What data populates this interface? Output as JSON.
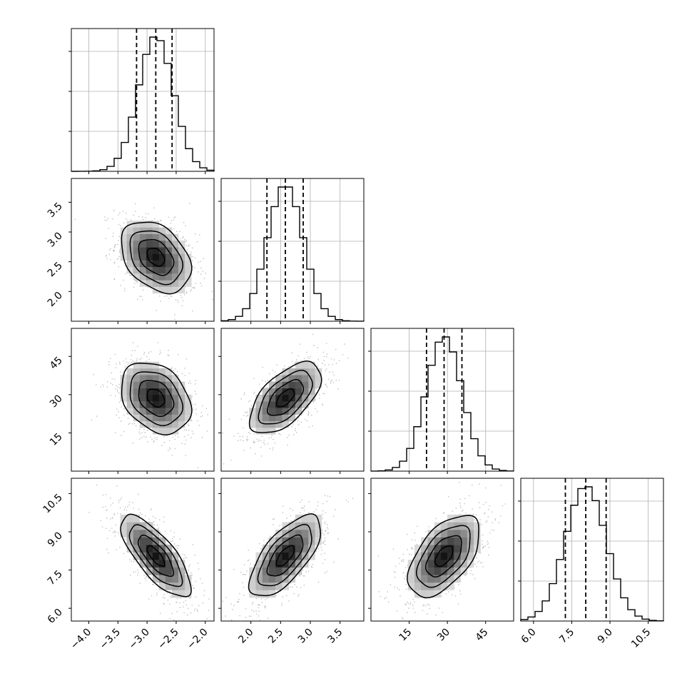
{
  "figure": {
    "background": "#ffffff",
    "line_color": "#000000",
    "grid_color": "#b0b0b0",
    "scatter_color": "#8c8c8c"
  },
  "chart_data": {
    "type": "corner",
    "parameters": [
      {
        "index": 0,
        "range": [
          -4.3,
          -1.85
        ],
        "ticks": [
          -4.0,
          -3.5,
          -3.0,
          -2.5,
          -2.0
        ],
        "tick_labels": [
          "−4.0",
          "−3.5",
          "−3.0",
          "−2.5",
          "−2.0"
        ],
        "quantiles": [
          -3.18,
          -2.85,
          -2.57
        ],
        "mean": -2.85,
        "sd": 0.3
      },
      {
        "index": 1,
        "range": [
          1.5,
          3.9
        ],
        "ticks": [
          2.0,
          2.5,
          3.0,
          3.5
        ],
        "tick_labels": [
          "2.0",
          "2.5",
          "3.0",
          "3.5"
        ],
        "quantiles": [
          2.27,
          2.58,
          2.88
        ],
        "mean": 2.58,
        "sd": 0.3
      },
      {
        "index": 2,
        "range": [
          0,
          56
        ],
        "ticks": [
          15,
          30,
          45
        ],
        "tick_labels": [
          "15",
          "30",
          "45"
        ],
        "quantiles": [
          21.8,
          28.7,
          35.7
        ],
        "mean": 28.7,
        "sd": 7
      },
      {
        "index": 3,
        "range": [
          5.5,
          11.1
        ],
        "ticks": [
          6.0,
          7.5,
          9.0,
          10.5
        ],
        "tick_labels": [
          "6.0",
          "7.5",
          "9.0",
          "10.5"
        ],
        "quantiles": [
          7.25,
          8.05,
          8.85
        ],
        "mean": 8.05,
        "sd": 0.8
      }
    ],
    "pairs": [
      {
        "x": 0,
        "y": 1,
        "correlation": -0.35
      },
      {
        "x": 0,
        "y": 2,
        "correlation": -0.3
      },
      {
        "x": 1,
        "y": 2,
        "correlation": 0.6
      },
      {
        "x": 0,
        "y": 3,
        "correlation": -0.75
      },
      {
        "x": 1,
        "y": 3,
        "correlation": 0.68
      },
      {
        "x": 2,
        "y": 3,
        "correlation": 0.55
      }
    ],
    "contour_levels_sigma": [
      0.5,
      1.0,
      1.5,
      2.0
    ],
    "histogram_bins": 20,
    "grid": true,
    "quantile_lines": "dashed",
    "title": "",
    "legend": "none"
  }
}
